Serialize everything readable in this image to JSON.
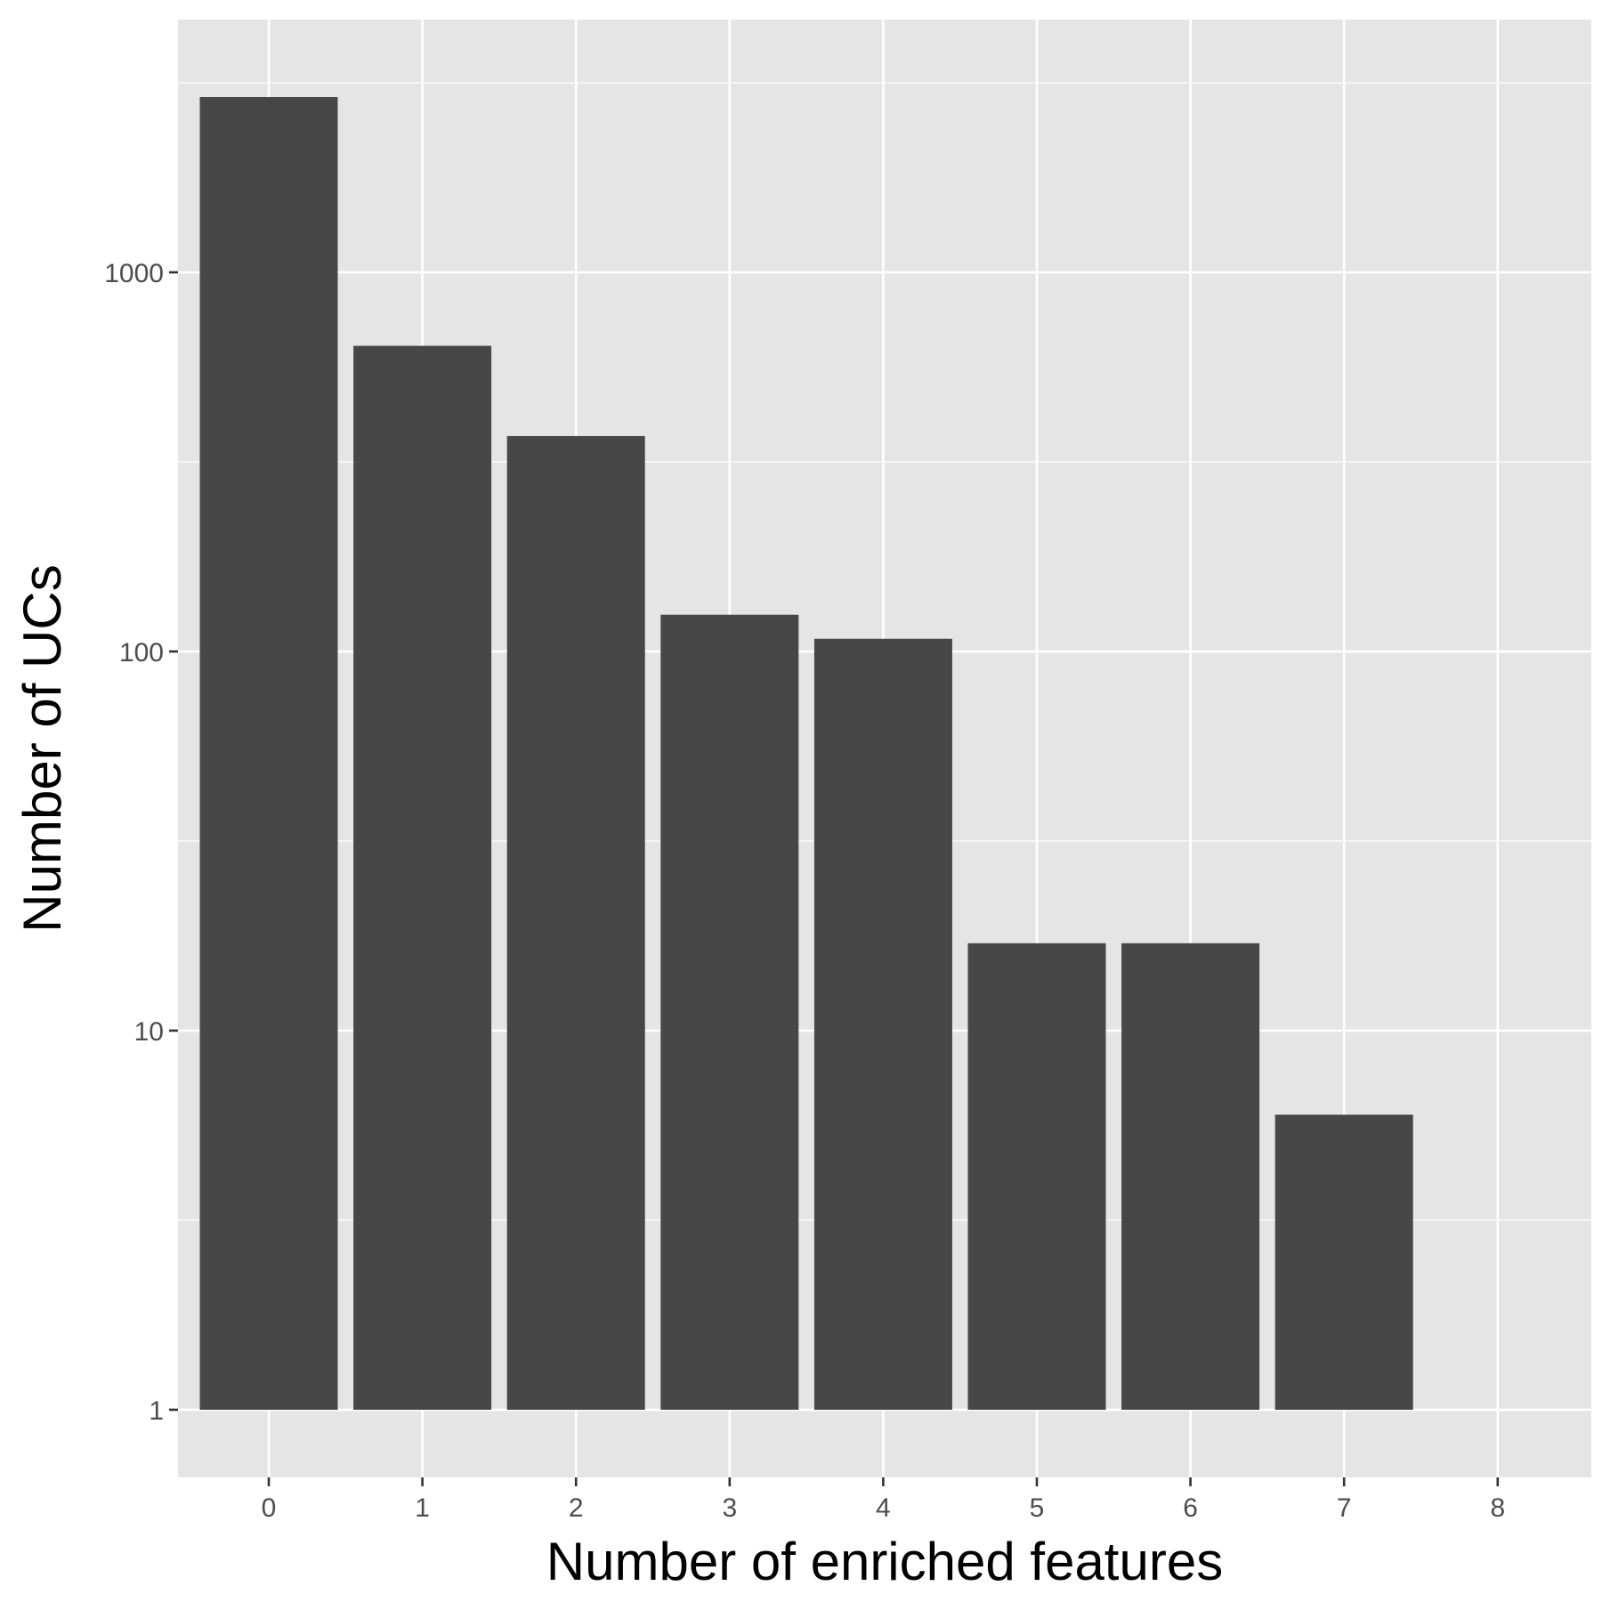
{
  "chart_data": {
    "type": "bar",
    "categories": [
      "0",
      "1",
      "2",
      "3",
      "4",
      "5",
      "6",
      "7",
      "8"
    ],
    "values": [
      2900,
      640,
      370,
      125,
      108,
      17,
      17,
      6,
      null
    ],
    "xlabel": "Number of enriched features",
    "ylabel": "Number of UCs",
    "y_scale": "log10",
    "y_ticks": [
      1,
      10,
      100,
      1000
    ],
    "y_tick_labels": [
      "1",
      "10",
      "100",
      "1000"
    ],
    "ylim": [
      0.65,
      4500
    ],
    "grid": true,
    "legend": "none",
    "colors": {
      "panel_background": "#e5e5e5",
      "grid": "#ffffff",
      "bar_fill": "#474747",
      "tick_text": "#4d4d4d",
      "axis_title": "#000000"
    }
  }
}
